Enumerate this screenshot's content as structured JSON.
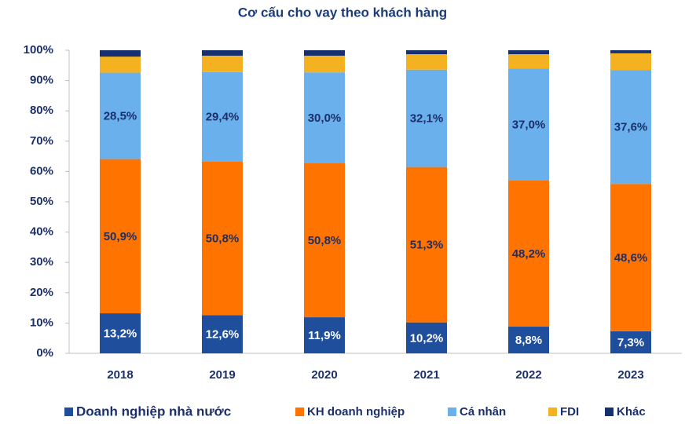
{
  "chart_data": {
    "type": "stacked_bar",
    "title": "Cơ cấu cho vay theo khách hàng",
    "categories": [
      "2018",
      "2019",
      "2020",
      "2021",
      "2022",
      "2023"
    ],
    "series": [
      {
        "name": "Doanh nghiệp nhà nước",
        "color": "#1f4e9c",
        "values": [
          13.2,
          12.6,
          11.9,
          10.2,
          8.8,
          7.3
        ],
        "value_labels": [
          "13,2%",
          "12,6%",
          "11,9%",
          "10,2%",
          "8,8%",
          "7,3%"
        ]
      },
      {
        "name": "KH doanh nghiệp",
        "color": "#ff7400",
        "values": [
          50.9,
          50.8,
          50.8,
          51.3,
          48.2,
          48.6
        ],
        "value_labels": [
          "50,9%",
          "50,8%",
          "50,8%",
          "51,3%",
          "48,2%",
          "48,6%"
        ]
      },
      {
        "name": "Cá nhân",
        "color": "#6ab0ec",
        "values": [
          28.5,
          29.4,
          30.0,
          32.1,
          37.0,
          37.6
        ],
        "value_labels": [
          "28,5%",
          "29,4%",
          "30,0%",
          "32,1%",
          "37,0%",
          "37,6%"
        ]
      },
      {
        "name": "FDI",
        "color": "#f4b120",
        "values": [
          5.3,
          5.4,
          5.5,
          5.1,
          4.7,
          5.5
        ]
      },
      {
        "name": "Khác",
        "color": "#162f6e",
        "values": [
          2.1,
          1.8,
          1.8,
          1.3,
          1.3,
          1.0
        ]
      }
    ],
    "ylim": [
      0,
      100
    ],
    "yticks": [
      {
        "value": 0,
        "label": "0%"
      },
      {
        "value": 10,
        "label": "10%"
      },
      {
        "value": 20,
        "label": "20%"
      },
      {
        "value": 30,
        "label": "30%"
      },
      {
        "value": 40,
        "label": "40%"
      },
      {
        "value": 50,
        "label": "50%"
      },
      {
        "value": 60,
        "label": "60%"
      },
      {
        "value": 70,
        "label": "70%"
      },
      {
        "value": 80,
        "label": "80%"
      },
      {
        "value": 90,
        "label": "90%"
      },
      {
        "value": 100,
        "label": "100%"
      }
    ],
    "legend": "bottom"
  }
}
